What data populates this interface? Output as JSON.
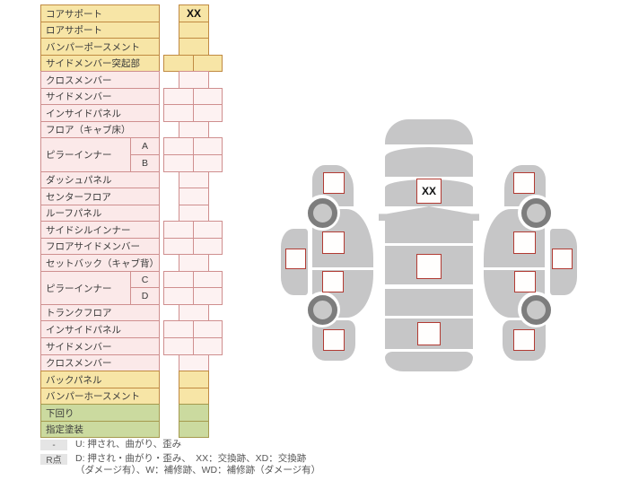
{
  "table": {
    "rows": [
      {
        "label": "コアサポート",
        "type": "yellow",
        "cells": "center",
        "value": "XX"
      },
      {
        "label": "ロアサポート",
        "type": "yellow",
        "cells": "center",
        "value": ""
      },
      {
        "label": "バンパーポースメント",
        "type": "yellow",
        "cells": "center",
        "value": ""
      },
      {
        "label": "サイドメンバー突起部",
        "type": "yellow",
        "cells": "pair",
        "value": ""
      },
      {
        "label": "クロスメンバー",
        "type": "pink",
        "cells": "center",
        "value": ""
      },
      {
        "label": "サイドメンバー",
        "type": "pink",
        "cells": "pair",
        "value": ""
      },
      {
        "label": "インサイドパネル",
        "type": "pink",
        "cells": "pair",
        "value": ""
      },
      {
        "label": "フロア（キャブ床）",
        "type": "pink",
        "cells": "center",
        "value": ""
      },
      {
        "label": "ピラーインナー",
        "sub": "A",
        "type": "pink",
        "cells": "pair",
        "value": "",
        "group": "start"
      },
      {
        "label": "",
        "sub": "B",
        "type": "pink",
        "cells": "pair",
        "value": "",
        "group": "end"
      },
      {
        "label": "ダッシュパネル",
        "type": "pink",
        "cells": "center",
        "value": ""
      },
      {
        "label": "センターフロア",
        "type": "pink",
        "cells": "center",
        "value": ""
      },
      {
        "label": "ルーフパネル",
        "type": "pink",
        "cells": "center",
        "value": ""
      },
      {
        "label": "サイドシルインナー",
        "type": "pink",
        "cells": "pair",
        "value": ""
      },
      {
        "label": "フロアサイドメンバー",
        "type": "pink",
        "cells": "pair",
        "value": ""
      },
      {
        "label": "セットバック（キャブ背）",
        "type": "pink",
        "cells": "center",
        "value": ""
      },
      {
        "label": "ピラーインナー",
        "sub": "C",
        "type": "pink",
        "cells": "pair",
        "value": "",
        "group": "start"
      },
      {
        "label": "",
        "sub": "D",
        "type": "pink",
        "cells": "pair",
        "value": "",
        "group": "end"
      },
      {
        "label": "トランクフロア",
        "type": "pink",
        "cells": "center",
        "value": ""
      },
      {
        "label": "インサイドパネル",
        "type": "pink",
        "cells": "pair",
        "value": ""
      },
      {
        "label": "サイドメンバー",
        "type": "pink",
        "cells": "pair",
        "value": ""
      },
      {
        "label": "クロスメンバー",
        "type": "pink",
        "cells": "center",
        "value": ""
      },
      {
        "label": "バックパネル",
        "type": "yellow",
        "cells": "center",
        "value": ""
      },
      {
        "label": "バンパーホースメント",
        "type": "yellow",
        "cells": "center",
        "value": ""
      },
      {
        "label": "下回り",
        "type": "green",
        "cells": "center",
        "value": ""
      },
      {
        "label": "指定塗装",
        "type": "green",
        "cells": "center",
        "value": ""
      }
    ]
  },
  "legend": {
    "rows": [
      {
        "badge": "-",
        "lines": [
          "U: 押され、曲がり、歪み"
        ]
      },
      {
        "badge": "R点",
        "lines": [
          "D: 押され・曲がり・歪み、　XX：交換跡、XD：交換跡",
          "（ダメージ有）、W：補修跡、WD：補修跡（ダメージ有）"
        ]
      }
    ]
  },
  "diagram": {
    "front_panel_marker": "XX",
    "markers": [
      {
        "location": "top-view-front-core-support",
        "code": "XX"
      },
      {
        "location": "top-view-center-floor",
        "code": ""
      },
      {
        "location": "top-view-rear-floor",
        "code": ""
      },
      {
        "location": "left-side-front-fender",
        "code": ""
      },
      {
        "location": "left-side-front-door",
        "code": ""
      },
      {
        "location": "left-side-rear-door",
        "code": ""
      },
      {
        "location": "left-side-rear-fender",
        "code": ""
      },
      {
        "location": "left-outer-panel",
        "code": ""
      },
      {
        "location": "right-side-front-fender",
        "code": ""
      },
      {
        "location": "right-side-front-door",
        "code": ""
      },
      {
        "location": "right-side-rear-door",
        "code": ""
      },
      {
        "location": "right-side-rear-fender",
        "code": ""
      },
      {
        "location": "right-outer-panel",
        "code": ""
      }
    ]
  },
  "colors": {
    "yellow_fill": "#f7e5a6",
    "yellow_border": "#c08a42",
    "pink_fill": "#fbe9e9",
    "pink_cell_fill": "#fdf2f2",
    "pink_border": "#cf8f8f",
    "green_fill": "#cbda9f",
    "green_border": "#a59a4e",
    "marker_border": "#b23b33",
    "car_gray": "#c6c6c7",
    "wheel_gray": "#7d7d7d"
  }
}
